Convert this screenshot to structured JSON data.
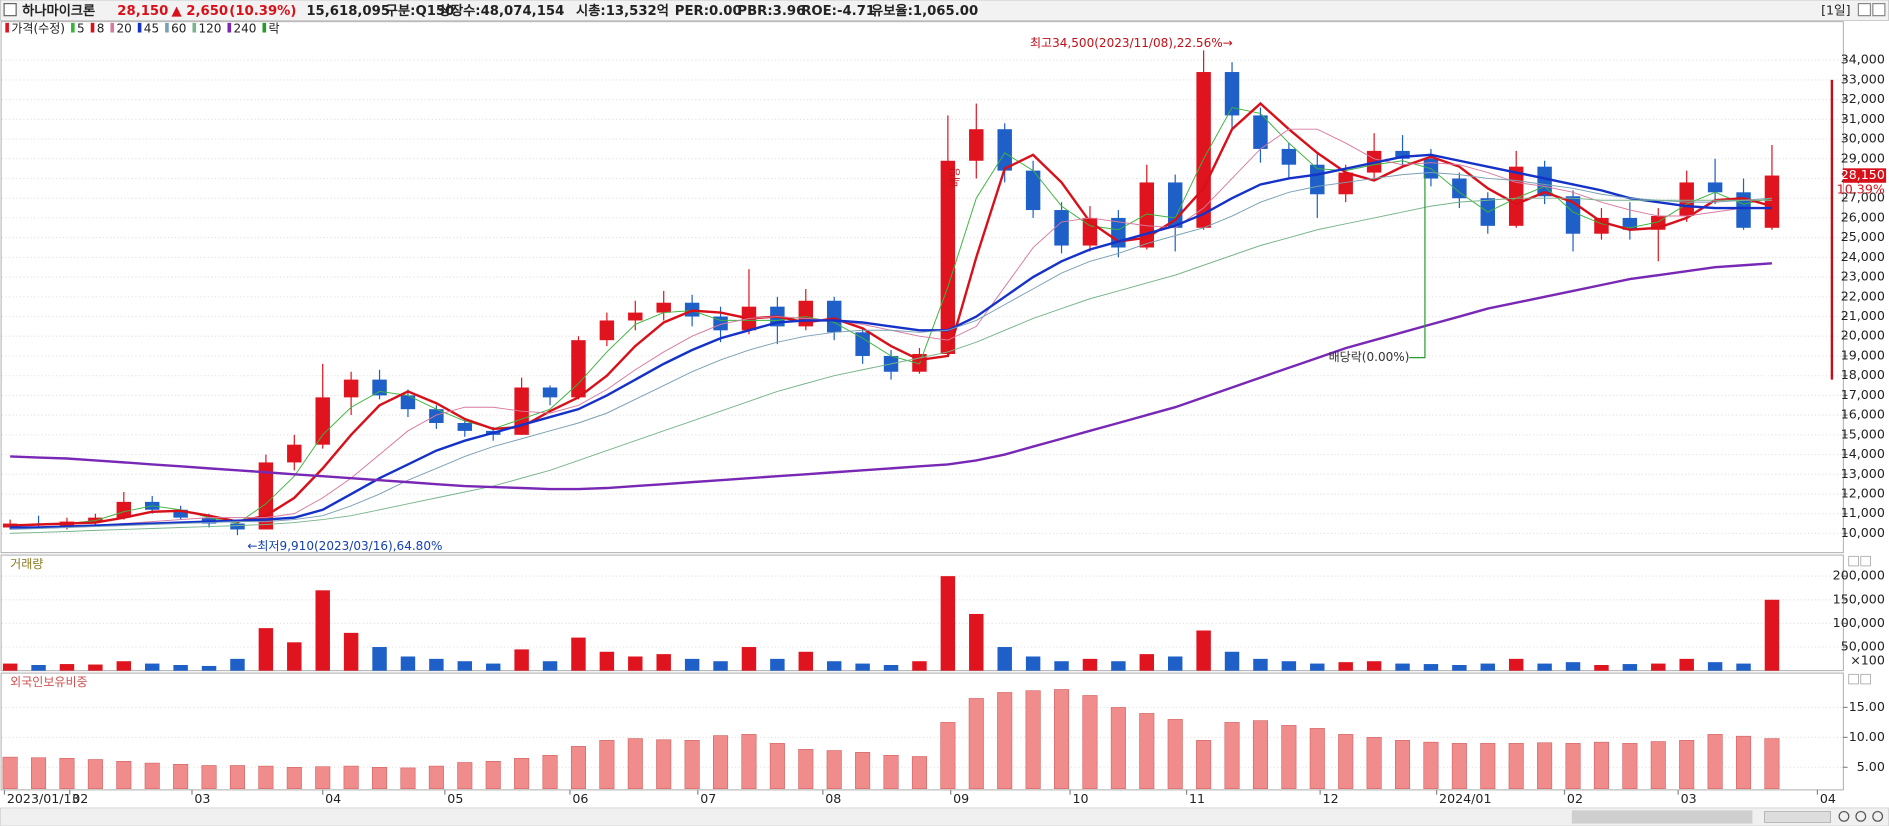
{
  "header": {
    "name": "하나마이크론",
    "price": "28,150",
    "change": "▲ 2,650",
    "change_pct": "(10.39%)",
    "volume": "15,618,095",
    "market": "구분:Q150",
    "shares": "상장수:48,074,154",
    "cap": "시총:13,532억",
    "per": "PER:0.00",
    "pbr": "PBR:3.96",
    "roe": "ROE:-4.71",
    "reserve": "유보율:1,065.00",
    "period": "[1일]"
  },
  "chart_data": [
    {
      "type": "candlestick",
      "name": "가격(수정)",
      "ex_rights_label": "락",
      "up_color": "#e0141e",
      "down_color": "#1e5fc8",
      "open": [
        10300,
        10500,
        10400,
        10600,
        10800,
        11600,
        11200,
        10800,
        10500,
        10200,
        13600,
        14500,
        16900,
        17800,
        17000,
        16300,
        15600,
        15200,
        15000,
        17400,
        16900,
        19800,
        20800,
        21200,
        21700,
        21000,
        20300,
        21500,
        20500,
        21800,
        20200,
        19000,
        18200,
        19100,
        28900,
        30500,
        28400,
        26400,
        24600,
        26000,
        24500,
        27800,
        25500,
        33400,
        31200,
        29500,
        28700,
        27200,
        28300,
        29400,
        29000,
        28000,
        27000,
        25600,
        28600,
        27100,
        25200,
        26000,
        25400,
        26100,
        27800,
        27300,
        25500
      ],
      "high": [
        10700,
        10900,
        10800,
        11000,
        12100,
        11900,
        11400,
        11000,
        10600,
        14000,
        15000,
        18600,
        18200,
        18300,
        17300,
        16500,
        15800,
        15400,
        17900,
        17500,
        20000,
        21200,
        21800,
        22300,
        22100,
        21500,
        23400,
        22000,
        22400,
        22000,
        20400,
        19300,
        19400,
        31200,
        31800,
        30800,
        28900,
        26800,
        26600,
        26400,
        28700,
        28200,
        34500,
        33900,
        31600,
        29800,
        29300,
        28700,
        30300,
        30200,
        29500,
        28300,
        27300,
        29400,
        28900,
        27400,
        26500,
        26800,
        26500,
        28400,
        29000,
        28000,
        29700
      ],
      "low": [
        10200,
        10300,
        10200,
        10400,
        10700,
        11000,
        10700,
        10300,
        9910,
        10200,
        13200,
        14300,
        16000,
        16800,
        15900,
        15300,
        14900,
        14700,
        15000,
        16500,
        16800,
        19500,
        20300,
        20800,
        20500,
        19700,
        20100,
        19600,
        20300,
        19800,
        18600,
        17800,
        18100,
        19000,
        28000,
        27800,
        26000,
        24200,
        24300,
        24000,
        24400,
        24300,
        25400,
        30500,
        28800,
        28000,
        26000,
        26800,
        28000,
        28600,
        27600,
        26500,
        25200,
        25500,
        26700,
        24300,
        24900,
        24900,
        23800,
        25800,
        26700,
        25400,
        25400
      ],
      "close": [
        10500,
        10400,
        10600,
        10800,
        11600,
        11200,
        10800,
        10500,
        10200,
        13600,
        14500,
        16900,
        17800,
        17000,
        16300,
        15600,
        15200,
        15000,
        17400,
        16900,
        19800,
        20800,
        21200,
        21700,
        21000,
        20300,
        21500,
        20500,
        21800,
        20200,
        19000,
        18200,
        19100,
        28900,
        30500,
        28400,
        26400,
        24600,
        26000,
        24500,
        27800,
        25500,
        33400,
        31200,
        29500,
        28700,
        27200,
        28300,
        29400,
        29000,
        28000,
        27000,
        25600,
        28600,
        27100,
        25200,
        26000,
        25400,
        26100,
        27800,
        27300,
        25500,
        28150
      ],
      "last_labels": [
        "28,150",
        "10.39%"
      ],
      "series": [
        {
          "name": "5",
          "color": "#3cb43c",
          "width": 0.8,
          "values": [
            10400,
            10450,
            10500,
            10650,
            11100,
            11400,
            11200,
            10800,
            10500,
            11500,
            12900,
            15000,
            16400,
            17200,
            17000,
            16300,
            15700,
            15300,
            15800,
            16300,
            17600,
            19200,
            20600,
            21200,
            21300,
            20800,
            20800,
            20800,
            21000,
            20700,
            19900,
            19000,
            18600,
            22500,
            27000,
            29300,
            28400,
            26600,
            25600,
            25400,
            26200,
            26000,
            29000,
            31600,
            31300,
            29800,
            28500,
            28400,
            28700,
            28900,
            28500,
            27300,
            26300,
            27000,
            27600,
            26300,
            25700,
            25500,
            25800,
            26700,
            27300,
            26700,
            27000
          ]
        },
        {
          "name": "8",
          "color": "#d8101a",
          "width": 2,
          "values": [
            10400,
            10450,
            10500,
            10550,
            10800,
            11100,
            11150,
            10900,
            10600,
            10900,
            11800,
            13300,
            15000,
            16500,
            17200,
            16600,
            15800,
            15300,
            15400,
            16200,
            16900,
            18000,
            19500,
            20700,
            21300,
            21200,
            20900,
            21000,
            20700,
            20900,
            20400,
            19500,
            18800,
            19000,
            24000,
            28500,
            29200,
            27800,
            25800,
            24800,
            25000,
            25900,
            27500,
            30500,
            31800,
            30500,
            29300,
            28300,
            27900,
            28600,
            29100,
            28600,
            27500,
            26700,
            27300,
            26800,
            25800,
            25400,
            25500,
            26000,
            26900,
            27000,
            26600
          ]
        },
        {
          "name": "20",
          "color": "#d87aa0",
          "width": 0.8,
          "values": [
            10300,
            10300,
            10350,
            10400,
            10500,
            10600,
            10700,
            10800,
            10800,
            10800,
            11000,
            11800,
            12800,
            14000,
            15200,
            16000,
            16400,
            16400,
            16200,
            16100,
            16500,
            17300,
            18300,
            19200,
            20000,
            20600,
            20900,
            21000,
            20900,
            20800,
            20600,
            20300,
            20000,
            19800,
            20500,
            22500,
            24500,
            25800,
            26000,
            25800,
            25600,
            25500,
            26500,
            28000,
            29500,
            30500,
            30500,
            29800,
            29000,
            28700,
            28800,
            28700,
            28300,
            27800,
            27600,
            27300,
            26800,
            26400,
            26100,
            26100,
            26300,
            26500,
            26500
          ]
        },
        {
          "name": "45",
          "color": "#1432c8",
          "width": 2,
          "values": [
            10300,
            10300,
            10350,
            10400,
            10450,
            10500,
            10550,
            10600,
            10650,
            10700,
            10800,
            11200,
            12000,
            12800,
            13500,
            14200,
            14700,
            15100,
            15500,
            15900,
            16300,
            17000,
            17800,
            18600,
            19300,
            19900,
            20300,
            20700,
            20800,
            20800,
            20700,
            20500,
            20300,
            20300,
            21000,
            22000,
            23000,
            23800,
            24400,
            24800,
            25200,
            25600,
            26200,
            27000,
            27700,
            28000,
            28200,
            28500,
            28800,
            29100,
            29200,
            28900,
            28600,
            28300,
            28000,
            27700,
            27400,
            27000,
            26800,
            26600,
            26500,
            26500,
            26500
          ]
        },
        {
          "name": "60",
          "color": "#7aa0b4",
          "width": 0.8,
          "values": [
            10200,
            10250,
            10300,
            10350,
            10400,
            10450,
            10500,
            10550,
            10600,
            10600,
            10700,
            10900,
            11400,
            12000,
            12700,
            13300,
            13900,
            14400,
            14800,
            15200,
            15600,
            16100,
            16800,
            17500,
            18200,
            18800,
            19300,
            19700,
            20000,
            20200,
            20300,
            20300,
            20200,
            20300,
            20800,
            21600,
            22400,
            23200,
            23800,
            24200,
            24700,
            25100,
            25500,
            26100,
            26800,
            27300,
            27600,
            27800,
            28000,
            28200,
            28300,
            28200,
            28000,
            27900,
            27700,
            27500,
            27200,
            27000,
            26900,
            26800,
            26800,
            26900,
            27000
          ]
        },
        {
          "name": "120",
          "color": "#78b48c",
          "width": 0.8,
          "values": [
            10000,
            10050,
            10100,
            10150,
            10200,
            10250,
            10300,
            10350,
            10400,
            10450,
            10550,
            10700,
            10900,
            11200,
            11500,
            11800,
            12100,
            12400,
            12800,
            13200,
            13700,
            14200,
            14700,
            15200,
            15700,
            16200,
            16700,
            17200,
            17600,
            18000,
            18300,
            18600,
            18900,
            19200,
            19700,
            20300,
            20900,
            21400,
            21900,
            22300,
            22700,
            23100,
            23600,
            24100,
            24600,
            25000,
            25400,
            25700,
            26000,
            26300,
            26600,
            26800,
            26900,
            27000,
            27000,
            27000,
            26900,
            26900,
            26900,
            26900,
            26900,
            26900,
            26900
          ]
        },
        {
          "name": "240",
          "color": "#7828b4",
          "width": 2,
          "values": [
            13900,
            13850,
            13800,
            13700,
            13600,
            13500,
            13400,
            13300,
            13200,
            13100,
            13000,
            12900,
            12800,
            12700,
            12600,
            12500,
            12400,
            12350,
            12300,
            12250,
            12250,
            12300,
            12400,
            12500,
            12600,
            12700,
            12800,
            12900,
            13000,
            13100,
            13200,
            13300,
            13400,
            13500,
            13700,
            14000,
            14400,
            14800,
            15200,
            15600,
            16000,
            16400,
            16900,
            17400,
            17900,
            18400,
            18900,
            19400,
            19800,
            20200,
            20600,
            21000,
            21400,
            21700,
            22000,
            22300,
            22600,
            22900,
            23100,
            23300,
            23500,
            23600,
            23700
          ]
        }
      ],
      "annotations": [
        "최고34,500(2023/11/08),22.56%→",
        "←최저9,910(2023/03/16),64.80%",
        "배당락(0.00%)",
        "배당"
      ],
      "ylim": [
        9084,
        35954
      ],
      "yticks": [
        {
          "value": 10000,
          "label": "10,000"
        },
        {
          "value": 11000,
          "label": "11,000"
        },
        {
          "value": 12000,
          "label": "12,000"
        },
        {
          "value": 13000,
          "label": "13,000"
        },
        {
          "value": 14000,
          "label": "14,000"
        },
        {
          "value": 15000,
          "label": "15,000"
        },
        {
          "value": 16000,
          "label": "16,000"
        },
        {
          "value": 17000,
          "label": "17,000"
        },
        {
          "value": 18000,
          "label": "18,000"
        },
        {
          "value": 19000,
          "label": "19,000"
        },
        {
          "value": 20000,
          "label": "20,000"
        },
        {
          "value": 21000,
          "label": "21,000"
        },
        {
          "value": 22000,
          "label": "22,000"
        },
        {
          "value": 23000,
          "label": "23,000"
        },
        {
          "value": 24000,
          "label": "24,000"
        },
        {
          "value": 25000,
          "label": "25,000"
        },
        {
          "value": 26000,
          "label": "26,000"
        },
        {
          "value": 27000,
          "label": "27,000"
        },
        {
          "value": 28000,
          "label": "28,000"
        },
        {
          "value": 29000,
          "label": "29,000"
        },
        {
          "value": 30000,
          "label": "30,000"
        },
        {
          "value": 31000,
          "label": "31,000"
        },
        {
          "value": 32000,
          "label": "32,000"
        },
        {
          "value": 33000,
          "label": "33,000"
        },
        {
          "value": 34000,
          "label": "34,000"
        }
      ],
      "grid": true
    },
    {
      "type": "bar",
      "title": "거래량",
      "unit_label": "×100",
      "values": [
        15000,
        12000,
        14000,
        13000,
        20000,
        15000,
        12000,
        10000,
        25000,
        90000,
        60000,
        170000,
        80000,
        50000,
        30000,
        25000,
        20000,
        15000,
        45000,
        20000,
        70000,
        40000,
        30000,
        35000,
        25000,
        20000,
        50000,
        25000,
        40000,
        20000,
        15000,
        12000,
        20000,
        200000,
        120000,
        50000,
        30000,
        20000,
        25000,
        20000,
        35000,
        30000,
        85000,
        40000,
        25000,
        20000,
        15000,
        18000,
        20000,
        15000,
        14000,
        12000,
        15000,
        25000,
        15000,
        18000,
        12000,
        14000,
        15000,
        25000,
        18000,
        15000,
        150000
      ],
      "ylim": [
        0,
        242000
      ],
      "yticks": [
        {
          "value": 50000,
          "label": "50,000"
        },
        {
          "value": 100000,
          "label": "100,000"
        },
        {
          "value": 150000,
          "label": "150,000"
        },
        {
          "value": 200000,
          "label": "200,000"
        }
      ],
      "grid": true
    },
    {
      "type": "bar",
      "title": "외국인보유비중",
      "color": "#f08c8c",
      "values": [
        6.7,
        6.6,
        6.5,
        6.3,
        6.0,
        5.7,
        5.5,
        5.3,
        5.3,
        5.2,
        5.0,
        5.1,
        5.2,
        5.0,
        4.9,
        5.2,
        5.8,
        6.0,
        6.5,
        7.0,
        8.5,
        9.5,
        9.8,
        9.6,
        9.5,
        10.3,
        10.5,
        9.0,
        8.0,
        7.8,
        7.5,
        7.0,
        6.8,
        12.5,
        16.5,
        17.5,
        17.8,
        18.0,
        17.0,
        15.0,
        14.0,
        13.0,
        9.5,
        12.5,
        12.8,
        12.0,
        11.5,
        10.5,
        10.0,
        9.5,
        9.2,
        9.0,
        9.0,
        9.0,
        9.1,
        9.0,
        9.2,
        9.0,
        9.3,
        9.5,
        10.5,
        10.2,
        9.8
      ],
      "ylim": [
        1.43,
        20.54
      ],
      "yticks": [
        {
          "value": 5,
          "label": "5.00"
        },
        {
          "value": 10,
          "label": "10.00"
        },
        {
          "value": 15,
          "label": "15.00"
        }
      ],
      "grid": true,
      "xticks": [
        {
          "value": -0.2,
          "label": "2023/01/13"
        },
        {
          "value": 2.1,
          "label": "02"
        },
        {
          "value": 6.4,
          "label": "03"
        },
        {
          "value": 11.0,
          "label": "04"
        },
        {
          "value": 15.3,
          "label": "05"
        },
        {
          "value": 19.7,
          "label": "06"
        },
        {
          "value": 24.2,
          "label": "07"
        },
        {
          "value": 28.6,
          "label": "08"
        },
        {
          "value": 33.1,
          "label": "09"
        },
        {
          "value": 37.3,
          "label": "10"
        },
        {
          "value": 41.4,
          "label": "11"
        },
        {
          "value": 46.1,
          "label": "12"
        },
        {
          "value": 50.2,
          "label": "2024/01"
        },
        {
          "value": 54.7,
          "label": "02"
        },
        {
          "value": 58.7,
          "label": "03"
        },
        {
          "value": 63.6,
          "label": "04"
        }
      ]
    }
  ]
}
